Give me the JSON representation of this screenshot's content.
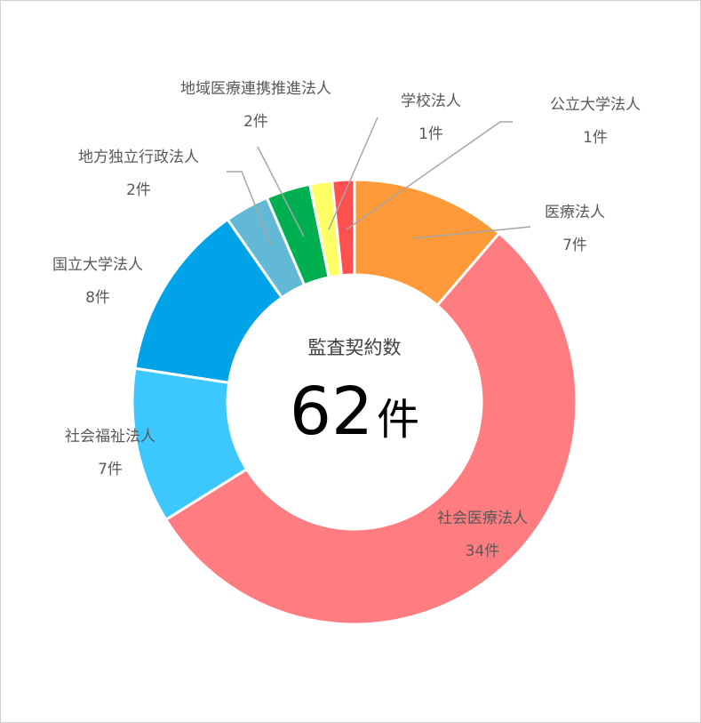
{
  "chart_data": {
    "type": "pie",
    "subtype": "donut",
    "center_title": "監査契約数",
    "center_value": "62",
    "center_unit": "件",
    "unit": "件",
    "slices": [
      {
        "label": "医療法人",
        "value": 7,
        "value_label": "7件",
        "color": "#FF9A3A"
      },
      {
        "label": "社会医療法人",
        "value": 34,
        "value_label": "34件",
        "color": "#FF7C80"
      },
      {
        "label": "社会福祉法人",
        "value": 7,
        "value_label": "7件",
        "color": "#3CC8FF"
      },
      {
        "label": "国立大学法人",
        "value": 8,
        "value_label": "8件",
        "color": "#00A2E8"
      },
      {
        "label": "地方独立行政法人",
        "value": 2,
        "value_label": "2件",
        "color": "#62B9D6"
      },
      {
        "label": "地域医療連携推進法人",
        "value": 2,
        "value_label": "2件",
        "color": "#00B050"
      },
      {
        "label": "学校法人",
        "value": 1,
        "value_label": "1件",
        "color": "#FFFF66"
      },
      {
        "label": "公立大学法人",
        "value": 1,
        "value_label": "1件",
        "color": "#FF5050"
      }
    ],
    "total": 62
  }
}
